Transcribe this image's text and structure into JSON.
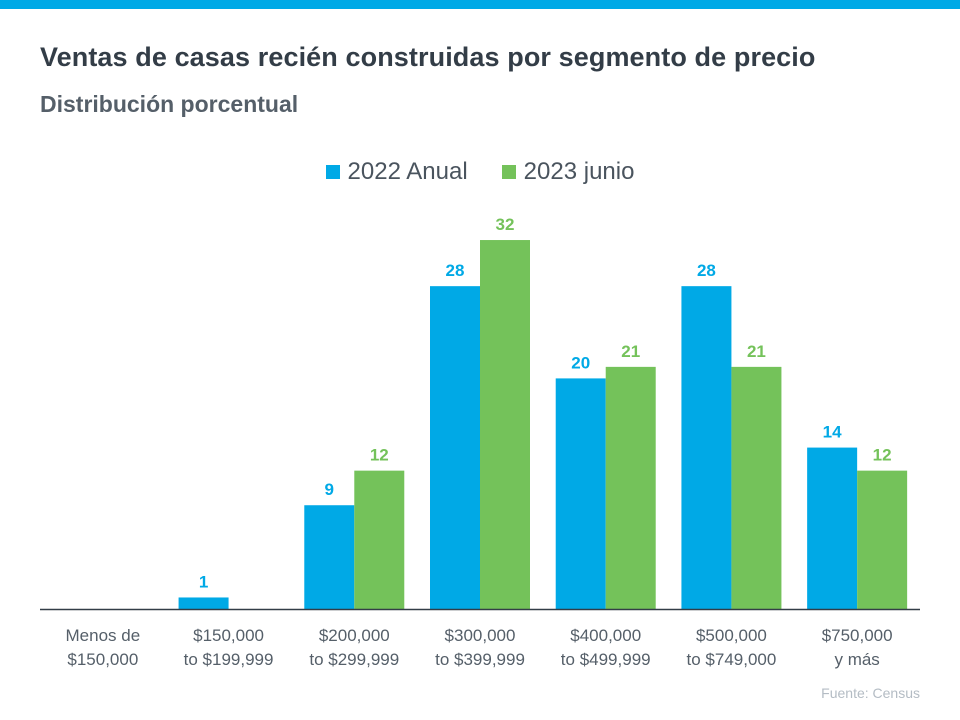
{
  "title": "Ventas de casas recién construidas por segmento de precio",
  "subtitle": "Distribución porcentual",
  "source": "Fuente:  Census",
  "colors": {
    "accent_bar": "#00a9e6",
    "series_2022": "#00a9e6",
    "series_2023": "#74c25a"
  },
  "legend": [
    "2022 Anual",
    "2023 junio"
  ],
  "chart_data": {
    "type": "bar",
    "categories": [
      [
        "Menos de",
        "$150,000"
      ],
      [
        "$150,000",
        "to $199,999"
      ],
      [
        "$200,000",
        "to $299,999"
      ],
      [
        "$300,000",
        "to $399,999"
      ],
      [
        "$400,000",
        "to $499,999"
      ],
      [
        "$500,000",
        "to $749,000"
      ],
      [
        "$750,000",
        "y más"
      ]
    ],
    "series": [
      {
        "name": "2022 Anual",
        "color": "#00a9e6",
        "values": [
          null,
          1,
          9,
          28,
          20,
          28,
          14
        ]
      },
      {
        "name": "2023 junio",
        "color": "#74c25a",
        "values": [
          null,
          null,
          12,
          32,
          21,
          21,
          12
        ]
      }
    ],
    "ylim": [
      0,
      32
    ],
    "grid": false,
    "legend_position": "top-center",
    "data_labels": true
  }
}
